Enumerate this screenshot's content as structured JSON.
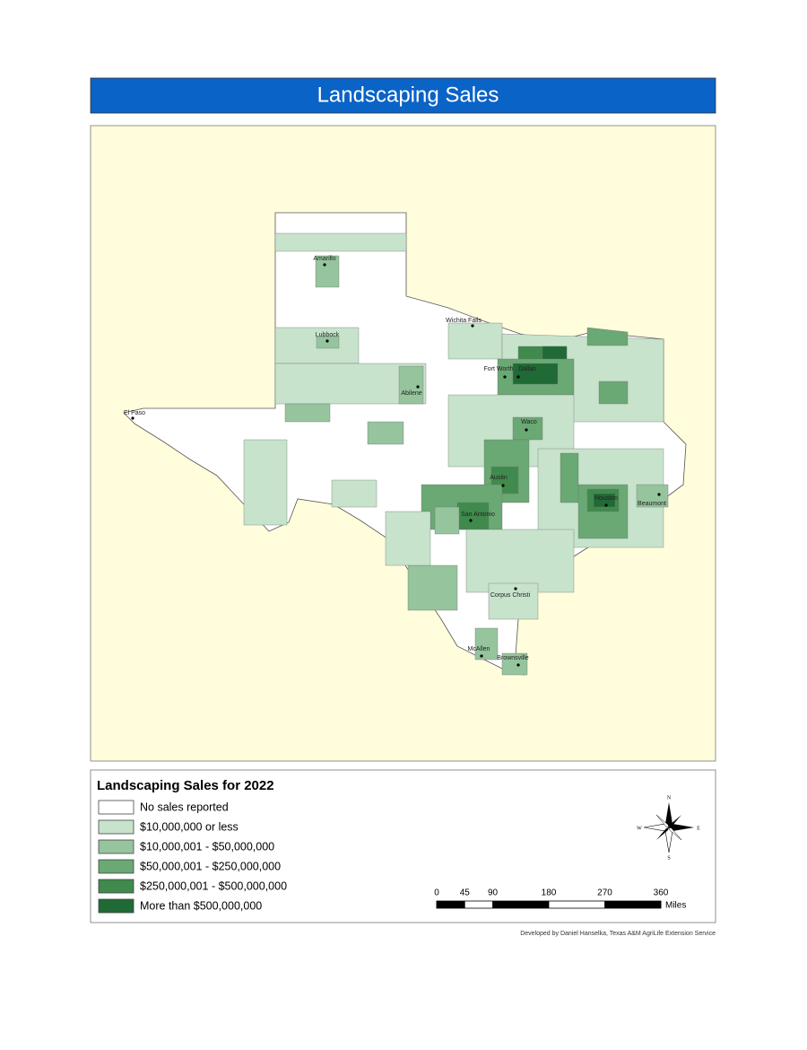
{
  "title": "Landscaping Sales",
  "cities": [
    "Amarillo",
    "Lubbock",
    "Wichita Falls",
    "Fort Worth",
    "Dallas",
    "Abilene",
    "El Paso",
    "Waco",
    "Austin",
    "Houston",
    "Beaumont",
    "San Antonio",
    "Corpus Christi",
    "McAllen",
    "Brownsville"
  ],
  "legend": {
    "title": "Landscaping Sales for 2022",
    "items": [
      {
        "label": "No sales reported",
        "color": "#ffffff"
      },
      {
        "label": "$10,000,000 or less",
        "color": "#c7e3cc"
      },
      {
        "label": "$10,000,001 - $50,000,000",
        "color": "#95c49d"
      },
      {
        "label": "$50,000,001 - $250,000,000",
        "color": "#6aa874"
      },
      {
        "label": "$250,000,001 - $500,000,000",
        "color": "#3f8a4c"
      },
      {
        "label": "More than $500,000,000",
        "color": "#1f6a35"
      }
    ]
  },
  "scale_bar": {
    "ticks": [
      0,
      45,
      90,
      180,
      270,
      360
    ],
    "unit": "Miles"
  },
  "compass": {
    "n": "N",
    "s": "S",
    "e": "E",
    "w": "W"
  },
  "credit": "Developed by Daniel Hanselka, Texas A&M AgriLife Extension Service"
}
